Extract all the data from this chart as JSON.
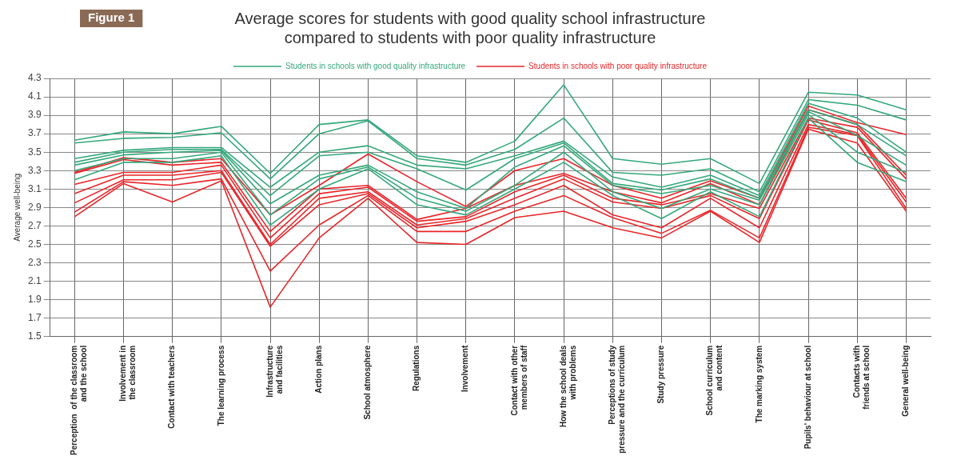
{
  "chart_data": {
    "type": "line",
    "title": "Average scores for students with good quality school infrastructure compared to students with poor quality infrastructure",
    "annotations": [
      "Figure 1"
    ],
    "ylabel": "Average well-being",
    "categories": [
      "Perception  of the classroom\nand the school",
      "Involvement in\nthe classroom",
      "Contact with teachers",
      "The learning process",
      "Infrastructure\nand facilities",
      "Action plans",
      "School atmosphere",
      "Regulations",
      "Involvement",
      "Contact with other\nmembers of staff",
      "How the school deals\nwith problems",
      "Perceptions of study\npressure and the curriculum",
      "Study pressure",
      "School curriculum\nand content",
      "The marking system",
      "Pupils' behaviour at school",
      "Contacts with\nfriends at school",
      "General well-being"
    ],
    "series": [
      {
        "name": "Students in schools with good quality infrastructure",
        "color": "#35a87c",
        "values": [
          3.63,
          3.72,
          3.7,
          3.78,
          3.27,
          3.8,
          3.85,
          3.46,
          3.39,
          3.62,
          4.23,
          3.43,
          3.37,
          3.43,
          3.16,
          4.15,
          4.12,
          3.96
        ]
      },
      {
        "color": "#35a87c",
        "values": [
          3.6,
          3.65,
          3.66,
          3.71,
          3.21,
          3.7,
          3.84,
          3.43,
          3.36,
          3.53,
          3.87,
          3.28,
          3.25,
          3.32,
          3.07,
          4.07,
          4.01,
          3.85
        ]
      },
      {
        "color": "#35a87c",
        "values": [
          3.43,
          3.52,
          3.55,
          3.55,
          3.12,
          3.5,
          3.57,
          3.36,
          3.32,
          3.46,
          3.62,
          3.23,
          3.12,
          3.25,
          3.03,
          4.03,
          3.87,
          3.5
        ]
      },
      {
        "color": "#35a87c",
        "values": [
          3.39,
          3.5,
          3.53,
          3.53,
          3.03,
          3.46,
          3.5,
          3.32,
          3.09,
          3.43,
          3.6,
          3.16,
          3.09,
          3.21,
          3.0,
          3.96,
          3.8,
          3.46
        ]
      },
      {
        "color": "#35a87c",
        "values": [
          3.36,
          3.47,
          3.5,
          3.52,
          2.94,
          3.25,
          3.36,
          3.07,
          2.89,
          3.34,
          3.57,
          3.14,
          3.05,
          3.14,
          2.98,
          3.94,
          3.68,
          3.36
        ]
      },
      {
        "color": "#35a87c",
        "values": [
          3.3,
          3.43,
          3.43,
          3.5,
          2.82,
          3.21,
          3.34,
          3.0,
          2.86,
          3.14,
          3.5,
          3.07,
          2.89,
          3.1,
          2.93,
          3.91,
          3.5,
          3.28
        ]
      },
      {
        "color": "#35a87c",
        "values": [
          3.2,
          3.39,
          3.39,
          3.46,
          2.71,
          3.1,
          3.32,
          2.93,
          2.82,
          3.1,
          3.39,
          3.03,
          2.78,
          3.07,
          2.8,
          3.87,
          3.39,
          3.18
        ]
      },
      {
        "name": "Students in schools with poor quality infrastructure",
        "color": "#e8262a",
        "values": [
          3.28,
          3.44,
          3.39,
          3.43,
          2.82,
          3.14,
          3.48,
          3.18,
          2.91,
          3.3,
          3.43,
          3.14,
          3.0,
          3.19,
          3.0,
          4.0,
          3.82,
          3.69
        ]
      },
      {
        "color": "#e8262a",
        "values": [
          3.27,
          3.42,
          3.36,
          3.39,
          2.64,
          3.1,
          3.14,
          2.77,
          2.89,
          3.14,
          3.27,
          3.07,
          2.95,
          3.16,
          2.93,
          3.96,
          3.8,
          3.25
        ]
      },
      {
        "color": "#e8262a",
        "values": [
          3.15,
          3.28,
          3.28,
          3.36,
          2.57,
          3.05,
          3.12,
          2.75,
          2.8,
          3.07,
          3.25,
          3.0,
          2.93,
          3.05,
          2.89,
          3.87,
          3.77,
          3.21
        ]
      },
      {
        "color": "#e8262a",
        "values": [
          3.05,
          3.25,
          3.25,
          3.3,
          2.5,
          3.0,
          3.07,
          2.71,
          2.78,
          3.0,
          3.21,
          2.96,
          2.89,
          3.03,
          2.78,
          3.85,
          3.71,
          3.0
        ]
      },
      {
        "color": "#e8262a",
        "values": [
          2.95,
          3.2,
          3.2,
          3.28,
          2.48,
          2.93,
          3.05,
          2.68,
          2.75,
          2.93,
          3.14,
          2.82,
          2.68,
          3.0,
          2.68,
          3.8,
          3.69,
          2.96
        ]
      },
      {
        "color": "#e8262a",
        "values": [
          2.85,
          3.18,
          3.14,
          3.21,
          2.21,
          2.71,
          3.03,
          2.64,
          2.64,
          2.86,
          3.03,
          2.79,
          2.62,
          2.87,
          2.57,
          3.77,
          3.68,
          2.89
        ]
      },
      {
        "color": "#e8262a",
        "values": [
          2.8,
          3.16,
          2.96,
          3.19,
          1.82,
          2.57,
          3.0,
          2.52,
          2.5,
          2.79,
          2.86,
          2.68,
          2.57,
          2.86,
          2.52,
          3.75,
          3.6,
          2.86
        ]
      }
    ],
    "ylim": [
      1.5,
      4.3
    ],
    "yticks": [
      1.5,
      1.7,
      1.9,
      2.1,
      2.3,
      2.5,
      2.7,
      2.9,
      3.1,
      3.3,
      3.5,
      3.7,
      3.9,
      4.1,
      4.3
    ],
    "grid": true,
    "legend": "top",
    "marker": "none",
    "line_style": "solid"
  }
}
